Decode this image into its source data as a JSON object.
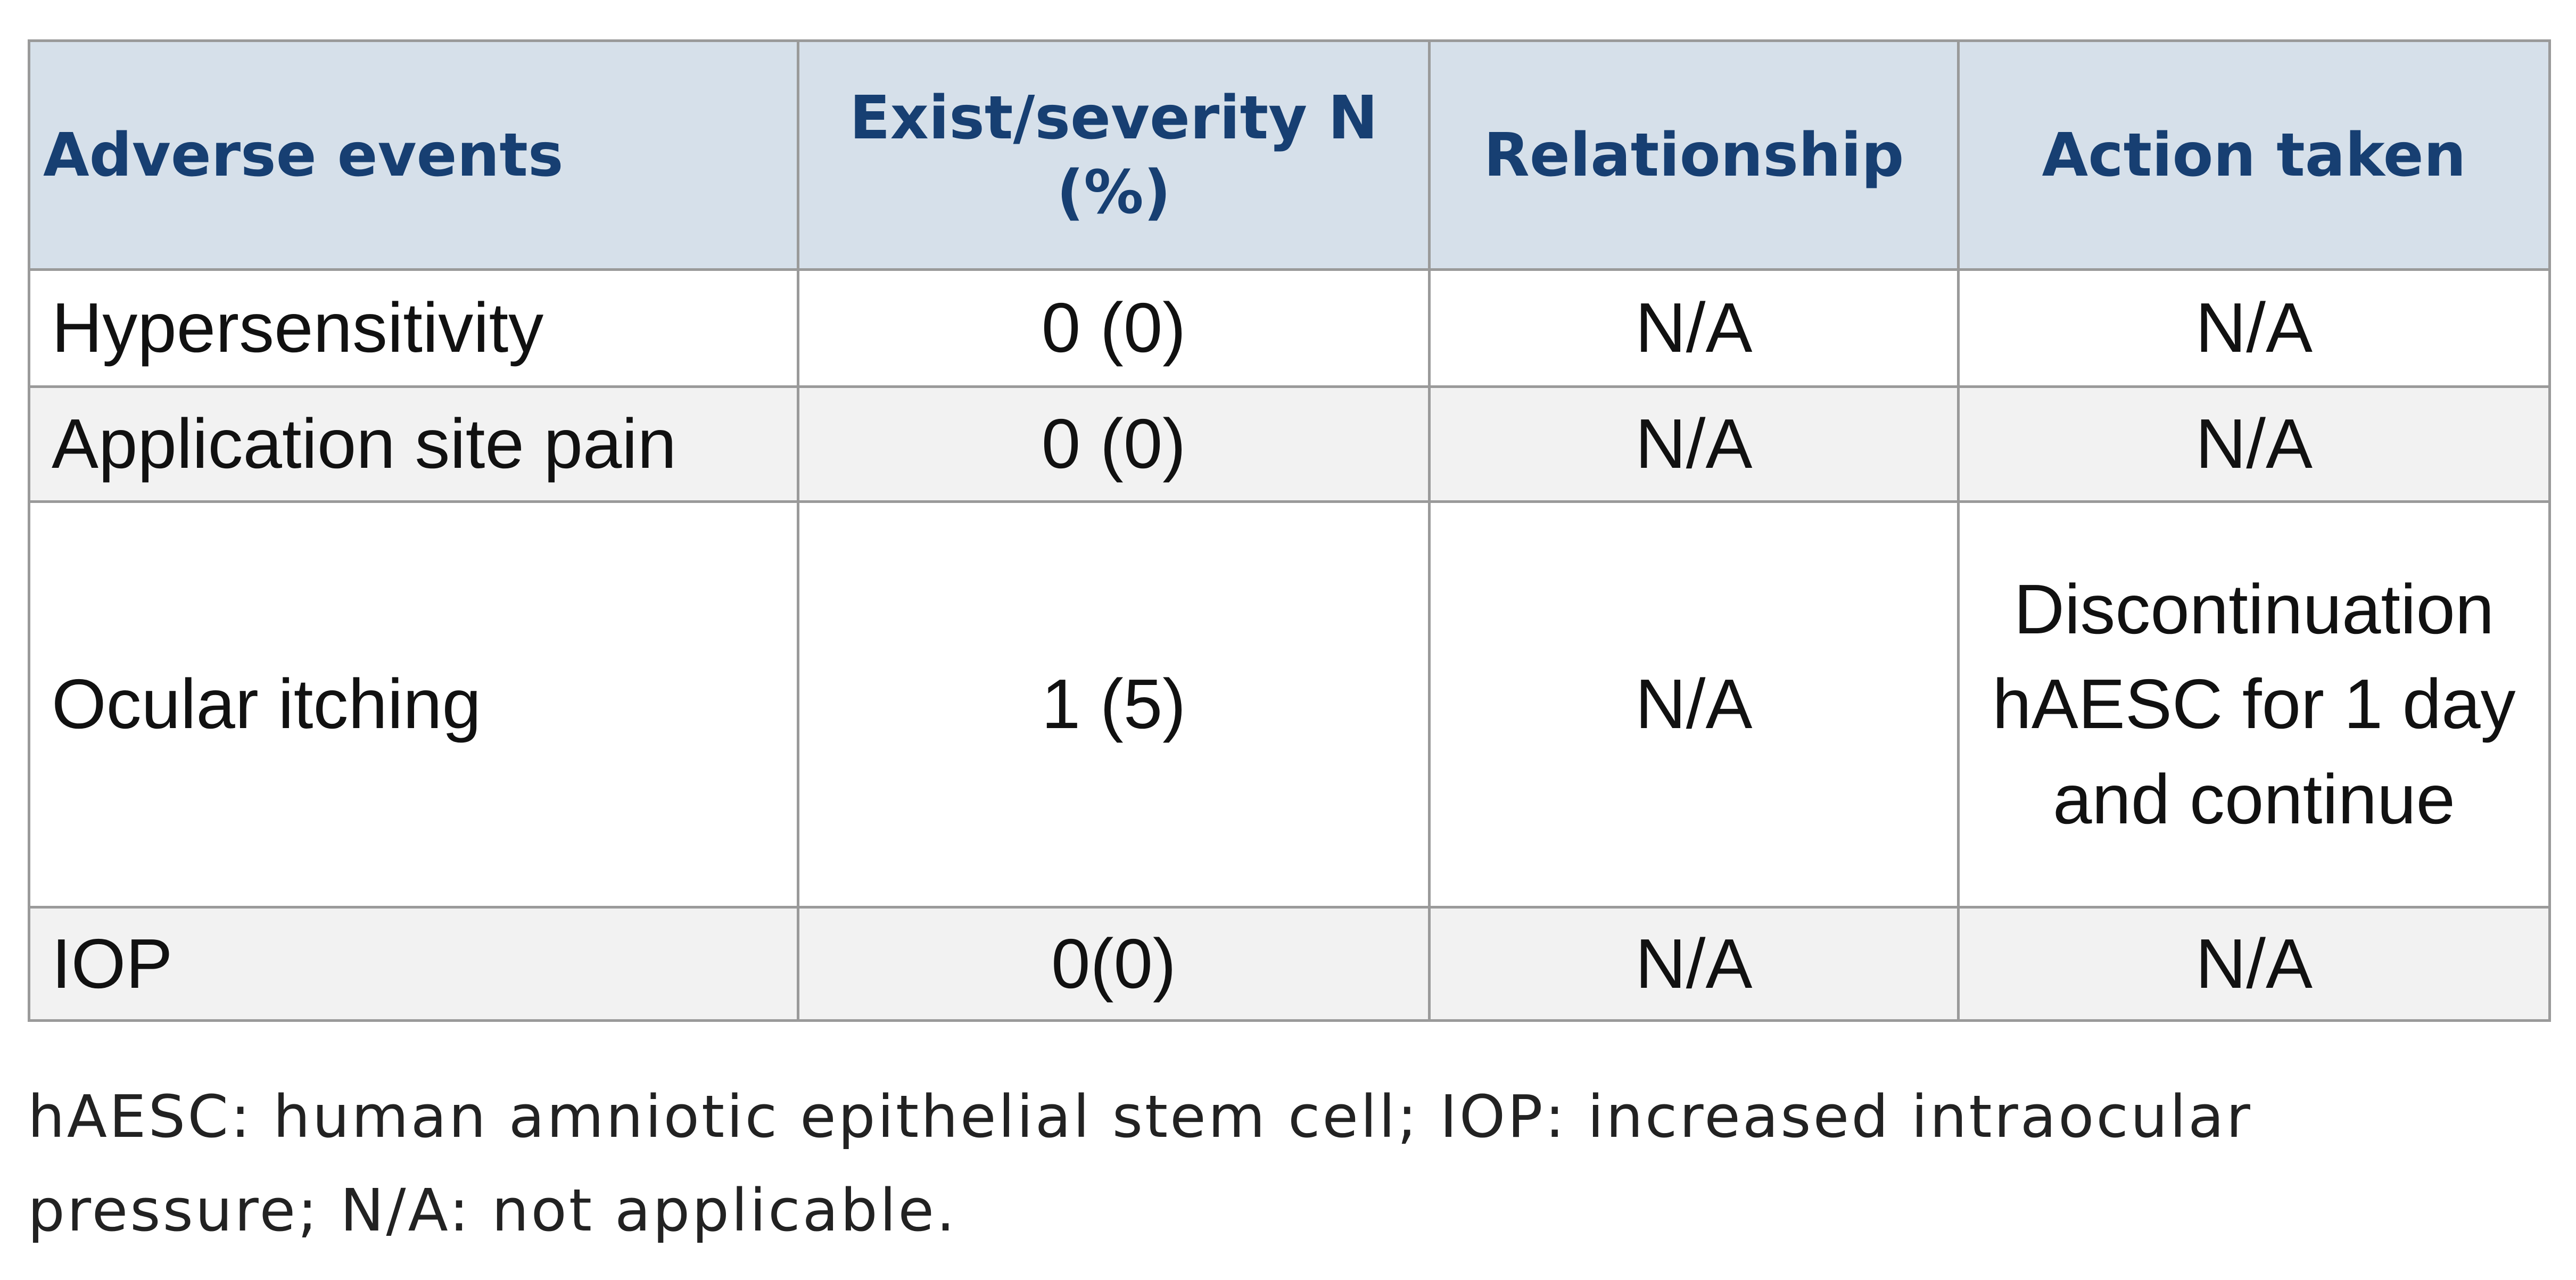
{
  "table": {
    "header": [
      "Adverse events",
      "Exist/severity N (%)",
      "Relationship",
      "Action taken"
    ],
    "rows": [
      [
        "Hypersensitivity",
        "0 (0)",
        "N/A",
        "N/A"
      ],
      [
        "Application site pain",
        "0 (0)",
        "N/A",
        "N/A"
      ],
      [
        "Ocular itching",
        "1 (5)",
        "N/A",
        "Discontinuation hAESC for 1 day and continue"
      ],
      [
        "IOP",
        "0(0)",
        "N/A",
        "N/A"
      ]
    ]
  },
  "footnote": "hAESC: human amniotic epithelial stem cell; IOP: increased intraocular pressure; N/A: not applicable."
}
